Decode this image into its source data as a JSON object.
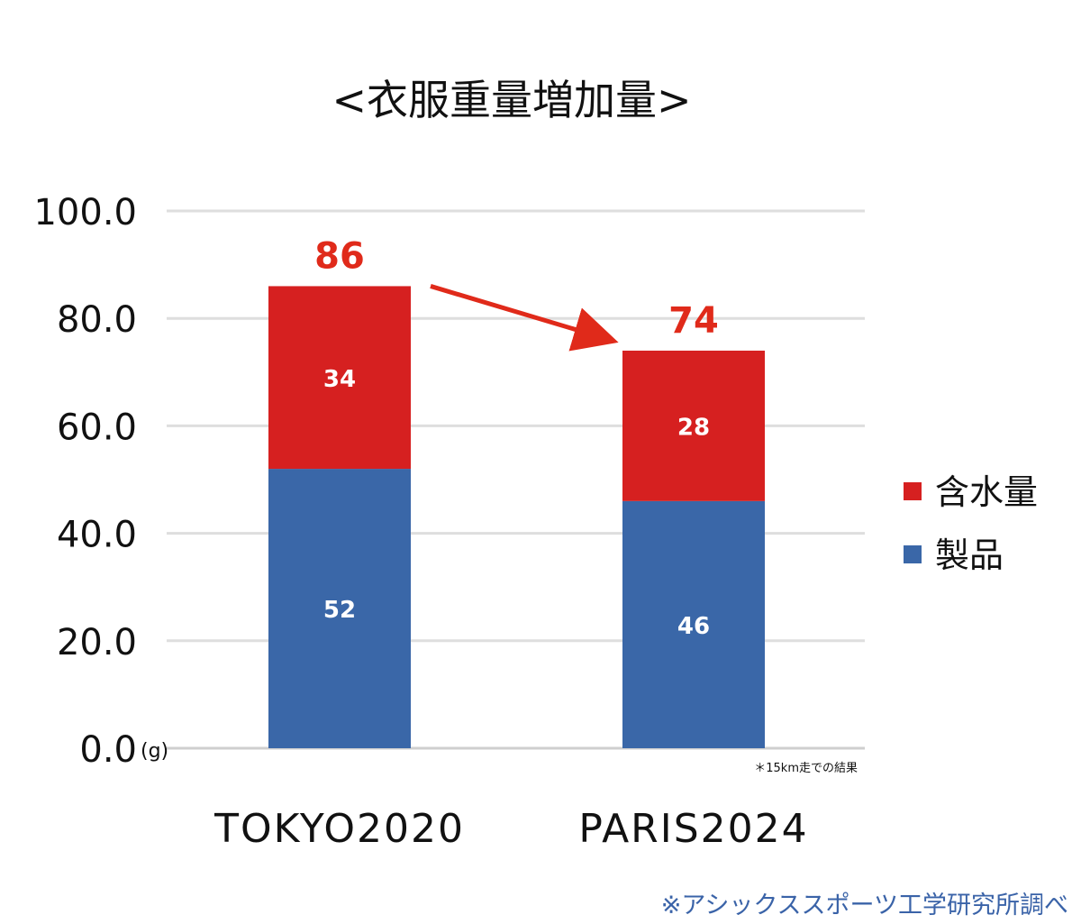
{
  "chart_data": {
    "type": "bar",
    "stacked": true,
    "title": "<衣服重量増加量>",
    "categories": [
      "TOKYO2020",
      "PARIS2024"
    ],
    "series": [
      {
        "name": "製品",
        "values": [
          52,
          46
        ],
        "color": "#3a67a8"
      },
      {
        "name": "含水量",
        "values": [
          34,
          28
        ],
        "color": "#d62020"
      }
    ],
    "totals": [
      86,
      74
    ],
    "total_label_color": "#e02a1a",
    "ylim": [
      0,
      100
    ],
    "yticks": [
      "0.0",
      "20.0",
      "40.0",
      "60.0",
      "80.0",
      "100.0"
    ],
    "ytick_values": [
      0,
      20,
      40,
      60,
      80,
      100
    ],
    "y_unit": "(g)",
    "grid": true,
    "legend_position": "right",
    "annotation_arrow": {
      "from": "TOKYO2020",
      "to": "PARIS2024",
      "color": "#e02a1a"
    },
    "note": "＊15km走での結果",
    "source": "※アシックススポーツ工学研究所調べ"
  }
}
